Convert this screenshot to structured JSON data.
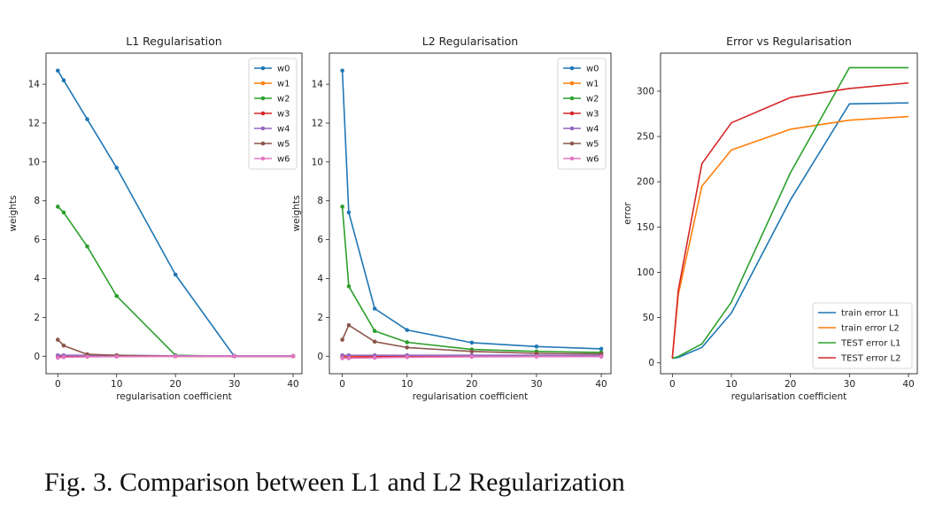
{
  "caption": "Fig. 3.  Comparison between L1 and L2 Regularization",
  "colors": {
    "w0": "#1f77b4",
    "w1": "#ff7f0e",
    "w2": "#2ca02c",
    "w3": "#d62728",
    "w4": "#9467bd",
    "w5": "#8c564b",
    "w6": "#e377c2"
  },
  "chart_data": [
    {
      "type": "line",
      "title": "L1 Regularisation",
      "xlabel": "regularisation coefficient",
      "ylabel": "weights",
      "xlim": [
        -2,
        41.5
      ],
      "ylim": [
        -0.9,
        15.6
      ],
      "xticks": [
        0,
        10,
        20,
        30,
        40
      ],
      "yticks": [
        0,
        2,
        4,
        6,
        8,
        10,
        12,
        14
      ],
      "markers": true,
      "legend": "top-right",
      "x": [
        0,
        1,
        5,
        10,
        20,
        30,
        40
      ],
      "series": [
        {
          "name": "w0",
          "values": [
            14.7,
            14.2,
            12.2,
            9.7,
            4.2,
            0.0,
            0.0
          ]
        },
        {
          "name": "w1",
          "values": [
            0.02,
            0.02,
            0.02,
            0.02,
            0.0,
            0.0,
            0.0
          ]
        },
        {
          "name": "w2",
          "values": [
            7.7,
            7.4,
            5.65,
            3.1,
            0.05,
            0.0,
            0.0
          ]
        },
        {
          "name": "w3",
          "values": [
            -0.02,
            -0.02,
            0.0,
            0.0,
            0.0,
            0.0,
            0.0
          ]
        },
        {
          "name": "w4",
          "values": [
            0.05,
            0.05,
            0.05,
            0.05,
            0.02,
            0.02,
            0.02
          ]
        },
        {
          "name": "w5",
          "values": [
            0.85,
            0.55,
            0.1,
            0.05,
            0.0,
            0.0,
            0.0
          ]
        },
        {
          "name": "w6",
          "values": [
            -0.08,
            -0.05,
            -0.03,
            -0.02,
            0.0,
            0.0,
            0.0
          ]
        }
      ]
    },
    {
      "type": "line",
      "title": "L2 Regularisation",
      "xlabel": "regularisation coefficient",
      "ylabel": "weights",
      "xlim": [
        -2,
        41.5
      ],
      "ylim": [
        -0.9,
        15.6
      ],
      "xticks": [
        0,
        10,
        20,
        30,
        40
      ],
      "yticks": [
        0,
        2,
        4,
        6,
        8,
        10,
        12,
        14
      ],
      "markers": true,
      "legend": "top-right",
      "x": [
        0,
        1,
        5,
        10,
        20,
        30,
        40
      ],
      "series": [
        {
          "name": "w0",
          "values": [
            14.7,
            7.4,
            2.45,
            1.35,
            0.7,
            0.5,
            0.38
          ]
        },
        {
          "name": "w1",
          "values": [
            0.02,
            0.0,
            0.02,
            0.02,
            0.02,
            0.02,
            0.02
          ]
        },
        {
          "name": "w2",
          "values": [
            7.7,
            3.6,
            1.3,
            0.72,
            0.35,
            0.25,
            0.2
          ]
        },
        {
          "name": "w3",
          "values": [
            -0.05,
            -0.05,
            -0.02,
            0.0,
            0.0,
            0.0,
            0.0
          ]
        },
        {
          "name": "w4",
          "values": [
            0.05,
            0.05,
            0.05,
            0.05,
            0.05,
            0.05,
            0.05
          ]
        },
        {
          "name": "w5",
          "values": [
            0.85,
            1.6,
            0.75,
            0.45,
            0.25,
            0.15,
            0.12
          ]
        },
        {
          "name": "w6",
          "values": [
            -0.1,
            -0.1,
            -0.08,
            -0.05,
            -0.03,
            -0.02,
            -0.02
          ]
        }
      ]
    },
    {
      "type": "line",
      "title": "Error vs Regularisation",
      "xlabel": "regularisation coefficient",
      "ylabel": "error",
      "xlim": [
        -2,
        41.5
      ],
      "ylim": [
        -12,
        342
      ],
      "xticks": [
        0,
        10,
        20,
        30,
        40
      ],
      "yticks": [
        0,
        50,
        100,
        150,
        200,
        250,
        300
      ],
      "markers": false,
      "legend": "bottom-right",
      "x": [
        0,
        1,
        5,
        10,
        20,
        30,
        40
      ],
      "series": [
        {
          "name": "train error L1",
          "color": "#1f77b4",
          "values": [
            5,
            6,
            17,
            55,
            180,
            286,
            287
          ]
        },
        {
          "name": "train error L2",
          "color": "#ff7f0e",
          "values": [
            5,
            75,
            195,
            235,
            258,
            268,
            272
          ]
        },
        {
          "name": "TEST error L1",
          "color": "#2ca02c",
          "values": [
            5,
            7,
            21,
            67,
            210,
            326,
            326
          ]
        },
        {
          "name": "TEST error L2",
          "color": "#d62728",
          "values": [
            5,
            80,
            220,
            265,
            293,
            303,
            309
          ]
        }
      ]
    }
  ]
}
